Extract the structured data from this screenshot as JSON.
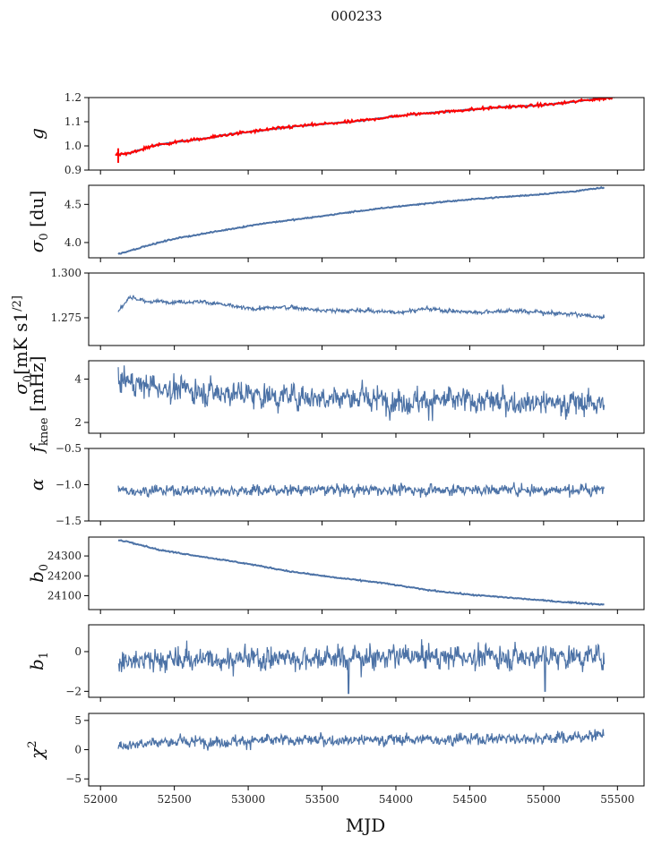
{
  "title": "000233",
  "chart_data": {
    "type": "line",
    "title": "000233",
    "xlabel": "MJD",
    "xlim": [
      51920,
      55680
    ],
    "xticks": [
      52000,
      52500,
      53000,
      53500,
      54000,
      54500,
      55000,
      55500
    ],
    "x_range": [
      52120,
      55410
    ],
    "panels": [
      {
        "id": "g",
        "ylabel": "g",
        "ylabel_kind": "italic",
        "ylim": [
          0.9,
          1.2
        ],
        "yticks": [
          0.9,
          1.0,
          1.1,
          1.2
        ],
        "ytick_labels": [
          "0.9",
          "1.0",
          "1.1",
          "1.2"
        ],
        "series": [
          {
            "style": "trend",
            "color": "#4c72a6",
            "noise": 0.001,
            "points": [
              [
                52120,
                0.965
              ],
              [
                52200,
                0.97
              ],
              [
                52350,
                1.0
              ],
              [
                52500,
                1.015
              ],
              [
                52700,
                1.03
              ],
              [
                52900,
                1.05
              ],
              [
                53100,
                1.065
              ],
              [
                53300,
                1.08
              ],
              [
                53500,
                1.09
              ],
              [
                53700,
                1.1
              ],
              [
                53900,
                1.115
              ],
              [
                54100,
                1.13
              ],
              [
                54300,
                1.14
              ],
              [
                54500,
                1.15
              ],
              [
                54700,
                1.16
              ],
              [
                54900,
                1.165
              ],
              [
                55100,
                1.175
              ],
              [
                55300,
                1.19
              ],
              [
                55410,
                1.2
              ]
            ]
          },
          {
            "style": "trend",
            "color": "#ff0000",
            "noise": 0.003,
            "spike_at": 52120,
            "spike_range": [
              0.93,
              0.99
            ],
            "points": [
              [
                52100,
                0.962
              ],
              [
                52200,
                0.97
              ],
              [
                52350,
                1.0
              ],
              [
                52500,
                1.015
              ],
              [
                52700,
                1.03
              ],
              [
                52900,
                1.05
              ],
              [
                53100,
                1.065
              ],
              [
                53300,
                1.08
              ],
              [
                53500,
                1.09
              ],
              [
                53700,
                1.1
              ],
              [
                53900,
                1.115
              ],
              [
                54100,
                1.13
              ],
              [
                54300,
                1.14
              ],
              [
                54500,
                1.15
              ],
              [
                54700,
                1.16
              ],
              [
                54900,
                1.165
              ],
              [
                55100,
                1.175
              ],
              [
                55300,
                1.19
              ],
              [
                55480,
                1.2
              ]
            ]
          }
        ]
      },
      {
        "id": "sigma0-du",
        "ylabel": "σ0 [du]",
        "ylabel_kind": "sigma_du",
        "ylim": [
          3.8,
          4.75
        ],
        "yticks": [
          4.0,
          4.5
        ],
        "ytick_labels": [
          "4.0",
          "4.5"
        ],
        "series": [
          {
            "style": "trend",
            "color": "#4c72a6",
            "noise": 0.004,
            "points": [
              [
                52120,
                3.85
              ],
              [
                52300,
                3.95
              ],
              [
                52500,
                4.05
              ],
              [
                52800,
                4.15
              ],
              [
                53100,
                4.25
              ],
              [
                53400,
                4.32
              ],
              [
                53700,
                4.4
              ],
              [
                54000,
                4.47
              ],
              [
                54300,
                4.53
              ],
              [
                54600,
                4.58
              ],
              [
                54900,
                4.62
              ],
              [
                55200,
                4.67
              ],
              [
                55410,
                4.72
              ]
            ]
          }
        ]
      },
      {
        "id": "sigma0-mk",
        "ylabel": "σ0[mK s1/2]",
        "ylabel_kind": "sigma_mk",
        "ylim": [
          1.2595,
          1.3
        ],
        "yticks": [
          1.275,
          1.3
        ],
        "ytick_labels": [
          "1.275",
          "1.300"
        ],
        "series": [
          {
            "style": "noise",
            "color": "#4c72a6",
            "mean": 1.2797,
            "amp": 0.0009,
            "points": [
              [
                52120,
                1.278
              ],
              [
                52200,
                1.287
              ],
              [
                52300,
                1.284
              ],
              [
                52500,
                1.284
              ],
              [
                52700,
                1.284
              ],
              [
                53000,
                1.28
              ],
              [
                53300,
                1.281
              ],
              [
                53500,
                1.279
              ],
              [
                53800,
                1.279
              ],
              [
                54000,
                1.278
              ],
              [
                54200,
                1.28
              ],
              [
                54500,
                1.278
              ],
              [
                54800,
                1.279
              ],
              [
                55000,
                1.278
              ],
              [
                55200,
                1.277
              ],
              [
                55410,
                1.275
              ]
            ]
          }
        ]
      },
      {
        "id": "fknee",
        "ylabel": "fknee [mHz]",
        "ylabel_kind": "fknee",
        "ylim": [
          1.5,
          4.85
        ],
        "yticks": [
          2,
          4
        ],
        "ytick_labels": [
          "2",
          "4"
        ],
        "series": [
          {
            "style": "noise",
            "color": "#4c72a6",
            "amp": 0.45,
            "points": [
              [
                52120,
                4.0
              ],
              [
                52400,
                3.6
              ],
              [
                52800,
                3.4
              ],
              [
                53200,
                3.2
              ],
              [
                53600,
                3.2
              ],
              [
                54000,
                3.0
              ],
              [
                54400,
                3.0
              ],
              [
                54800,
                2.95
              ],
              [
                55200,
                2.9
              ],
              [
                55410,
                2.9
              ]
            ]
          }
        ]
      },
      {
        "id": "alpha",
        "ylabel": "α",
        "ylabel_kind": "italic",
        "ylim": [
          -1.5,
          -0.5
        ],
        "yticks": [
          -1.5,
          -1.0,
          -0.5
        ],
        "ytick_labels": [
          "−1.5",
          "−1.0",
          "−0.5"
        ],
        "series": [
          {
            "style": "noise",
            "color": "#4c72a6",
            "amp": 0.055,
            "points": [
              [
                52120,
                -1.08
              ],
              [
                52500,
                -1.08
              ],
              [
                53000,
                -1.08
              ],
              [
                53500,
                -1.07
              ],
              [
                54000,
                -1.07
              ],
              [
                54500,
                -1.07
              ],
              [
                55000,
                -1.07
              ],
              [
                55410,
                -1.07
              ]
            ]
          }
        ]
      },
      {
        "id": "b0",
        "ylabel": "b0",
        "ylabel_kind": "sub0",
        "ylim": [
          24030,
          24395
        ],
        "yticks": [
          24100,
          24200,
          24300
        ],
        "ytick_labels": [
          "24100",
          "24200",
          "24300"
        ],
        "series": [
          {
            "style": "trend",
            "color": "#4c72a6",
            "noise": 1.5,
            "points": [
              [
                52120,
                24380
              ],
              [
                52200,
                24370
              ],
              [
                52400,
                24330
              ],
              [
                52700,
                24295
              ],
              [
                53000,
                24260
              ],
              [
                53300,
                24220
              ],
              [
                53600,
                24190
              ],
              [
                53900,
                24165
              ],
              [
                54200,
                24130
              ],
              [
                54500,
                24105
              ],
              [
                54800,
                24088
              ],
              [
                55100,
                24070
              ],
              [
                55410,
                24055
              ]
            ]
          }
        ]
      },
      {
        "id": "b1",
        "ylabel": "b1",
        "ylabel_kind": "sub1",
        "ylim": [
          -2.3,
          1.35
        ],
        "yticks": [
          -2,
          0
        ],
        "ytick_labels": [
          "−2",
          "0"
        ],
        "series": [
          {
            "style": "noise",
            "color": "#4c72a6",
            "amp": 0.45,
            "dips": [
              [
                53680,
                -2.1
              ],
              [
                55010,
                -2.0
              ]
            ],
            "points": [
              [
                52120,
                -0.45
              ],
              [
                52500,
                -0.4
              ],
              [
                53000,
                -0.35
              ],
              [
                53500,
                -0.3
              ],
              [
                54000,
                -0.25
              ],
              [
                54500,
                -0.25
              ],
              [
                55000,
                -0.25
              ],
              [
                55410,
                -0.25
              ]
            ]
          }
        ]
      },
      {
        "id": "chi2",
        "ylabel": "χ2",
        "ylabel_kind": "chi",
        "ylim": [
          -6.2,
          6.2
        ],
        "yticks": [
          -5,
          0,
          5
        ],
        "ytick_labels": [
          "−5",
          "0",
          "5"
        ],
        "series": [
          {
            "style": "noise",
            "color": "#4c72a6",
            "amp": 0.75,
            "points": [
              [
                52120,
                0.5
              ],
              [
                52300,
                1.3
              ],
              [
                52800,
                1.4
              ],
              [
                53300,
                1.6
              ],
              [
                53800,
                1.7
              ],
              [
                54300,
                1.8
              ],
              [
                54800,
                1.9
              ],
              [
                55200,
                2.1
              ],
              [
                55410,
                2.6
              ]
            ]
          }
        ]
      }
    ]
  }
}
